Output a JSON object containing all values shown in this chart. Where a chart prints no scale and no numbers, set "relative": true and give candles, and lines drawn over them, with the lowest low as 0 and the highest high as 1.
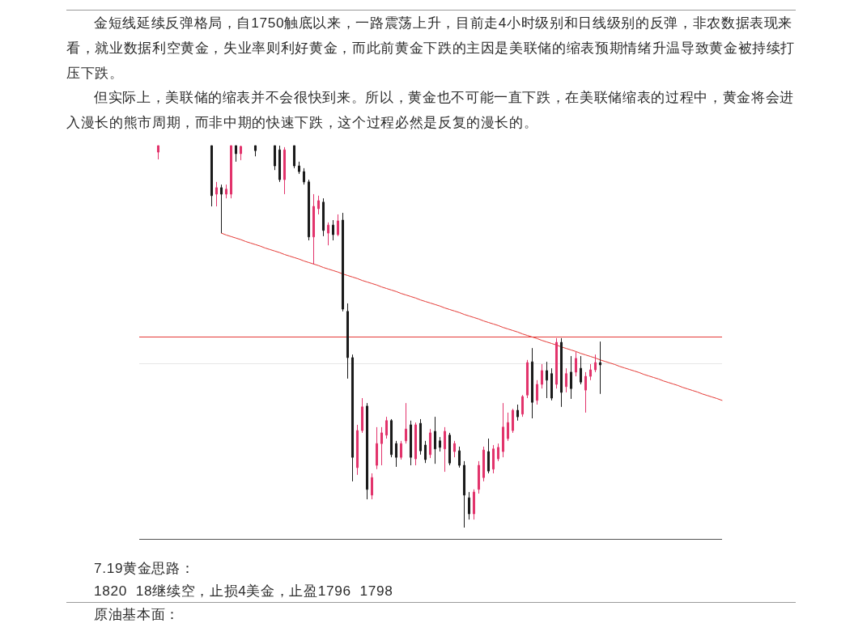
{
  "chart_data": {
    "type": "candlestick",
    "relative": true,
    "annotations": [
      "金短线延续反弹格局，自1750触底以来，一路震荡上升，目前走4小时级别和日线级别的反弹，非农数据表现来看，就业数据利空黄金，失业率则利好黄金，而此前黄金下跌的主因是美联储的缩表预期情绪升温导致黄金被持续打压下跌。",
      "但实际上，美联储的缩表并不会很快到来。所以，黄金也不可能一直下跌，在美联储缩表的过程中，黄金将会进入漫长的熊市周期，而非中期的快速下跌，这个过程必然是反复的漫长的。",
      "7.19黄金思路：",
      "1820  18继续空，止损4美金，止盈1796  1798",
      "原油基本面："
    ],
    "categories": [
      null,
      null,
      null,
      null,
      null,
      null,
      null,
      null,
      null,
      null,
      null,
      null,
      null,
      null,
      null,
      null,
      null,
      null,
      null,
      null,
      null,
      null,
      null,
      null,
      null,
      null,
      null,
      null,
      null,
      null,
      null,
      null,
      null,
      null,
      null,
      null,
      null,
      null,
      null,
      null,
      null,
      null,
      null,
      null,
      null,
      null,
      null,
      null,
      null,
      null,
      null,
      null,
      null,
      null,
      null,
      null,
      null,
      null,
      null,
      null,
      null,
      null,
      null,
      null,
      null,
      null,
      null,
      null,
      null,
      null,
      null,
      null,
      null,
      null,
      null,
      null,
      null,
      null,
      null,
      null,
      null,
      null,
      null,
      null,
      null,
      null,
      null,
      null,
      null,
      null,
      null,
      null,
      null,
      null,
      null,
      null,
      null,
      null,
      null,
      null,
      null,
      null,
      null,
      null,
      null,
      null,
      null,
      null,
      null,
      null,
      null,
      null,
      null,
      null,
      null,
      null,
      null
    ],
    "ohlc": [
      [
        0.983,
        1.0,
        0.964,
        1.0
      ],
      null,
      null,
      null,
      null,
      null,
      null,
      null,
      null,
      null,
      null,
      [
        1.0,
        1.0,
        0.841,
        0.869
      ],
      [
        0.873,
        0.905,
        0.841,
        0.89
      ],
      [
        0.89,
        0.898,
        0.771,
        0.873
      ],
      [
        0.873,
        0.898,
        0.862,
        0.886
      ],
      [
        0.873,
        1.0,
        0.862,
        1.0
      ],
      [
        1.0,
        1.0,
        0.958,
        0.979
      ],
      [
        0.979,
        1.0,
        0.962,
        0.998
      ],
      null,
      null,
      [
        1.0,
        1.0,
        0.972,
        0.987
      ],
      null,
      null,
      null,
      [
        1.0,
        1.0,
        0.936,
        0.947
      ],
      [
        0.989,
        1.0,
        0.905,
        0.911
      ],
      [
        0.911,
        0.996,
        0.873,
        0.989
      ],
      null,
      [
        1.0,
        1.0,
        0.941,
        0.947
      ],
      [
        0.947,
        0.958,
        0.926,
        0.932
      ],
      [
        0.932,
        0.941,
        0.898,
        0.905
      ],
      [
        0.905,
        0.911,
        0.752,
        0.761
      ],
      [
        0.761,
        0.873,
        0.689,
        0.841
      ],
      [
        0.835,
        0.869,
        0.82,
        0.856
      ],
      [
        0.852,
        0.862,
        0.763,
        0.778
      ],
      [
        0.771,
        0.799,
        0.739,
        0.792
      ],
      [
        0.792,
        0.805,
        0.752,
        0.767
      ],
      [
        0.767,
        0.82,
        0.763,
        0.803
      ],
      [
        0.805,
        0.824,
        0.566,
        0.572
      ],
      [
        0.566,
        0.587,
        0.39,
        0.445
      ],
      [
        0.445,
        0.453,
        0.121,
        0.184
      ],
      [
        0.157,
        0.269,
        0.138,
        0.254
      ],
      [
        0.254,
        0.339,
        0.248,
        0.316
      ],
      [
        0.318,
        0.326,
        0.074,
        0.1
      ],
      [
        0.085,
        0.142,
        0.074,
        0.131
      ],
      [
        0.163,
        0.263,
        0.153,
        0.22
      ],
      [
        0.22,
        0.263,
        0.163,
        0.248
      ],
      [
        0.242,
        0.29,
        0.233,
        0.28
      ],
      [
        0.28,
        0.284,
        0.184,
        0.191
      ],
      [
        0.22,
        0.227,
        0.159,
        0.184
      ],
      [
        0.184,
        0.227,
        0.178,
        0.22
      ],
      [
        0.227,
        0.326,
        0.22,
        0.258
      ],
      [
        0.269,
        0.28,
        0.163,
        0.184
      ],
      [
        0.18,
        0.275,
        0.163,
        0.269
      ],
      [
        0.273,
        0.284,
        0.191,
        0.201
      ],
      [
        0.216,
        0.227,
        0.169,
        0.178
      ],
      [
        0.191,
        0.258,
        0.182,
        0.248
      ],
      [
        0.252,
        0.29,
        0.167,
        0.206
      ],
      [
        0.227,
        0.237,
        0.199,
        0.21
      ],
      [
        0.206,
        0.263,
        0.146,
        0.252
      ],
      [
        0.242,
        0.248,
        0.163,
        0.169
      ],
      [
        0.199,
        0.227,
        0.184,
        0.22
      ],
      [
        0.201,
        0.212,
        0.157,
        0.163
      ],
      [
        0.163,
        0.174,
        0.0,
        0.085
      ],
      [
        0.078,
        0.093,
        0.021,
        0.036
      ],
      [
        0.036,
        0.1,
        0.021,
        0.093
      ],
      [
        0.1,
        0.174,
        0.089,
        0.163
      ],
      [
        0.131,
        0.212,
        0.121,
        0.203
      ],
      [
        0.199,
        0.233,
        0.142,
        0.148
      ],
      [
        0.153,
        0.216,
        0.142,
        0.206
      ],
      [
        0.18,
        0.22,
        0.174,
        0.21
      ],
      [
        0.199,
        0.326,
        0.184,
        0.263
      ],
      [
        0.233,
        0.301,
        0.227,
        0.275
      ],
      [
        0.254,
        0.311,
        0.248,
        0.307
      ],
      [
        0.307,
        0.322,
        0.28,
        0.29
      ],
      [
        0.297,
        0.347,
        0.29,
        0.343
      ],
      [
        0.347,
        0.439,
        0.339,
        0.432
      ],
      [
        0.434,
        0.47,
        0.286,
        0.328
      ],
      [
        0.333,
        0.386,
        0.322,
        0.375
      ],
      [
        0.375,
        0.428,
        0.364,
        0.411
      ],
      [
        0.411,
        0.434,
        0.339,
        0.386
      ],
      [
        0.403,
        0.417,
        0.333,
        0.339
      ],
      [
        0.375,
        0.496,
        0.364,
        0.485
      ],
      [
        0.485,
        0.496,
        0.316,
        0.354
      ],
      [
        0.369,
        0.417,
        0.354,
        0.403
      ],
      [
        0.407,
        0.449,
        0.337,
        0.364
      ],
      [
        0.407,
        0.46,
        0.396,
        0.443
      ],
      [
        0.417,
        0.449,
        0.375,
        0.381
      ],
      [
        0.36,
        0.407,
        0.301,
        0.396
      ],
      [
        0.396,
        0.428,
        0.386,
        0.413
      ],
      [
        0.413,
        0.453,
        0.407,
        0.432
      ],
      [
        0.432,
        0.487,
        0.35,
        0.426
      ],
      null,
      null,
      null,
      null,
      null,
      null,
      null,
      null,
      null,
      null,
      null,
      null,
      null,
      null,
      null,
      null,
      null,
      null,
      null,
      null,
      null,
      null,
      null,
      null,
      null
    ],
    "colors": [
      "#e2336b",
      null,
      null,
      null,
      null,
      null,
      null,
      null,
      null,
      null,
      null,
      "#1a1a1a",
      "#e2336b",
      "#1a1a1a",
      "#e2336b",
      "#e2336b",
      "#1a1a1a",
      "#e2336b",
      null,
      null,
      "#1a1a1a",
      null,
      null,
      null,
      "#1a1a1a",
      "#1a1a1a",
      "#e2336b",
      null,
      "#1a1a1a",
      "#1a1a1a",
      "#1a1a1a",
      "#1a1a1a",
      "#e2336b",
      "#e2336b",
      "#1a1a1a",
      "#e2336b",
      "#1a1a1a",
      "#e2336b",
      "#1a1a1a",
      "#1a1a1a",
      "#1a1a1a",
      "#e2336b",
      "#e2336b",
      "#1a1a1a",
      "#e2336b",
      "#e2336b",
      "#e2336b",
      "#e2336b",
      "#1a1a1a",
      "#1a1a1a",
      "#e2336b",
      "#e2336b",
      "#1a1a1a",
      "#e2336b",
      "#1a1a1a",
      "#1a1a1a",
      "#e2336b",
      "#1a1a1a",
      "#1a1a1a",
      "#e2336b",
      "#1a1a1a",
      "#e2336b",
      "#1a1a1a",
      "#1a1a1a",
      "#1a1a1a",
      "#e2336b",
      "#e2336b",
      "#e2336b",
      "#1a1a1a",
      "#e2336b",
      "#e2336b",
      "#e2336b",
      "#e2336b",
      "#e2336b",
      "#1a1a1a",
      "#e2336b",
      "#e2336b",
      "#1a1a1a",
      "#e2336b",
      "#e2336b",
      "#1a1a1a",
      "#1a1a1a",
      "#e2336b",
      "#1a1a1a",
      "#e2336b",
      "#1a1a1a",
      "#e2336b",
      "#1a1a1a",
      "#e2336b",
      "#e2336b",
      "#e2336b",
      "#1a1a1a",
      null,
      null,
      null,
      null,
      null,
      null,
      null,
      null,
      null,
      null,
      null,
      null,
      null,
      null,
      null,
      null,
      null,
      null,
      null,
      null,
      null,
      null,
      null,
      null,
      null
    ],
    "series": [
      {
        "type": "line",
        "color": "#e53935",
        "values": [
          null,
          null,
          null,
          null,
          null,
          null,
          null,
          null,
          null,
          null,
          null,
          null,
          null,
          0.771,
          0.766,
          0.762,
          0.758,
          0.754,
          0.749,
          0.745,
          0.741,
          0.737,
          0.732,
          0.728,
          0.724,
          0.72,
          0.715,
          0.711,
          0.707,
          0.703,
          0.698,
          0.694,
          0.69,
          0.686,
          0.681,
          0.677,
          0.673,
          0.669,
          0.664,
          0.66,
          0.656,
          0.652,
          0.647,
          0.643,
          0.639,
          0.635,
          0.63,
          0.626,
          0.622,
          0.618,
          0.613,
          0.609,
          0.605,
          0.601,
          0.596,
          0.592,
          0.588,
          0.584,
          0.58,
          0.575,
          0.571,
          0.567,
          0.563,
          0.558,
          0.554,
          0.55,
          0.546,
          0.541,
          0.537,
          0.533,
          0.529,
          0.524,
          0.52,
          0.516,
          0.512,
          0.507,
          0.503,
          0.499,
          0.495,
          0.49,
          0.486,
          0.482,
          0.478,
          0.473,
          0.469,
          0.465,
          0.461,
          0.456,
          0.452,
          0.448,
          0.444,
          0.439,
          0.435,
          0.431,
          0.427,
          0.422,
          0.418,
          0.414,
          0.41,
          0.406,
          0.401,
          0.397,
          0.393,
          0.389,
          0.384,
          0.38,
          0.376,
          0.372,
          0.367,
          0.363,
          0.359,
          0.355,
          0.35,
          0.346,
          0.342,
          0.338,
          0.333
        ]
      }
    ],
    "ref_lines": [
      {
        "axis": "y",
        "value": 0.5,
        "color": "#e53935"
      },
      {
        "axis": "y",
        "value": 0.43,
        "color": "#e6e6e6"
      }
    ]
  }
}
